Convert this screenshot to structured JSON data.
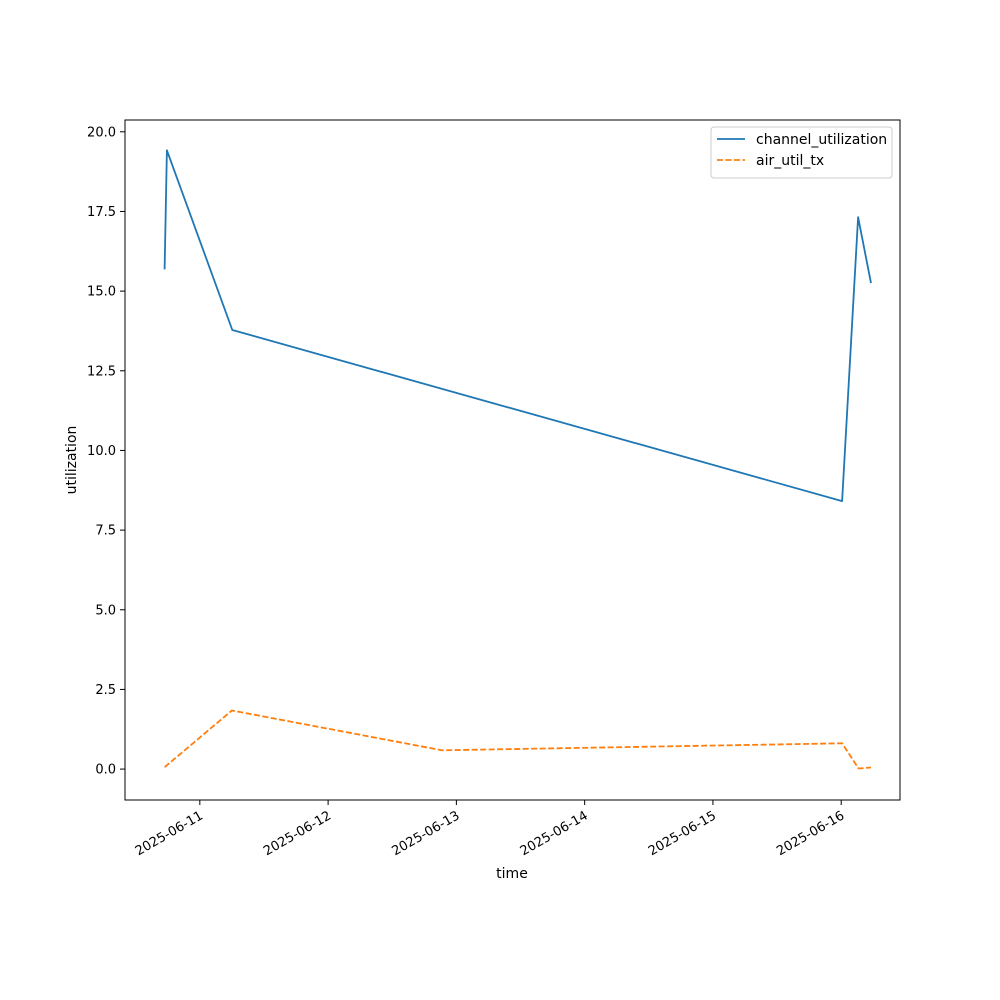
{
  "chart_data": {
    "type": "line",
    "title": "",
    "xlabel": "time",
    "ylabel": "utilization",
    "x_ticks": [
      {
        "x": "2025-06-11",
        "label": "2025-06-11"
      },
      {
        "x": "2025-06-12",
        "label": "2025-06-12"
      },
      {
        "x": "2025-06-13",
        "label": "2025-06-13"
      },
      {
        "x": "2025-06-14",
        "label": "2025-06-14"
      },
      {
        "x": "2025-06-15",
        "label": "2025-06-15"
      },
      {
        "x": "2025-06-16",
        "label": "2025-06-16"
      }
    ],
    "y_ticks": [
      {
        "y": 0.0,
        "label": "0.0"
      },
      {
        "y": 2.5,
        "label": "2.5"
      },
      {
        "y": 5.0,
        "label": "5.0"
      },
      {
        "y": 7.5,
        "label": "7.5"
      },
      {
        "y": 10.0,
        "label": "10.0"
      },
      {
        "y": 12.5,
        "label": "12.5"
      },
      {
        "y": 15.0,
        "label": "15.0"
      },
      {
        "y": 17.5,
        "label": "17.5"
      },
      {
        "y": 20.0,
        "label": "20.0"
      }
    ],
    "xlim": [
      "2025-06-10 10:00",
      "2025-06-16 11:00"
    ],
    "ylim": [
      -0.97,
      20.37
    ],
    "grid": false,
    "legend_position": "top-right",
    "series": [
      {
        "name": "channel_utilization",
        "color": "#1f77b4",
        "style": "solid",
        "points": [
          {
            "x": "2025-06-10 17:25",
            "y": 15.68
          },
          {
            "x": "2025-06-10 17:50",
            "y": 19.42
          },
          {
            "x": "2025-06-11 06:05",
            "y": 13.78
          },
          {
            "x": "2025-06-16 00:10",
            "y": 8.41
          },
          {
            "x": "2025-06-16 03:10",
            "y": 17.32
          },
          {
            "x": "2025-06-16 05:35",
            "y": 15.25
          }
        ]
      },
      {
        "name": "air_util_tx",
        "color": "#ff7f0e",
        "style": "dashed",
        "points": [
          {
            "x": "2025-06-10 17:25",
            "y": 0.06
          },
          {
            "x": "2025-06-11 06:00",
            "y": 1.84
          },
          {
            "x": "2025-06-12 21:20",
            "y": 0.59
          },
          {
            "x": "2025-06-16 00:10",
            "y": 0.81
          },
          {
            "x": "2025-06-16 03:15",
            "y": 0.02
          },
          {
            "x": "2025-06-16 05:35",
            "y": 0.05
          }
        ]
      }
    ]
  }
}
